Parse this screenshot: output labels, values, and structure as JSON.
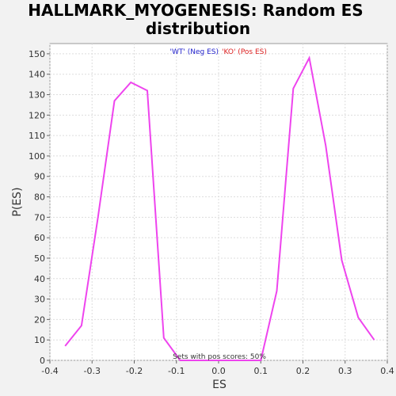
{
  "chart_data": {
    "type": "line",
    "title_lines": [
      "HALLMARK_MYOGENESIS: Random ES",
      "distribution"
    ],
    "xlabel": "ES",
    "ylabel": "P(ES)",
    "xlim": [
      -0.4,
      0.4
    ],
    "ylim": [
      0,
      155
    ],
    "xticks": [
      -0.4,
      -0.3,
      -0.2,
      -0.1,
      0.0,
      0.1,
      0.2,
      0.3,
      0.4
    ],
    "xtick_labels": [
      "-0.4",
      "-0.3",
      "-0.2",
      "-0.1",
      "0.0",
      "0.1",
      "0.2",
      "0.3",
      "0.4"
    ],
    "yticks": [
      0,
      10,
      20,
      30,
      40,
      50,
      60,
      70,
      80,
      90,
      100,
      110,
      120,
      130,
      140,
      150
    ],
    "ytick_labels": [
      "0",
      "10",
      "20",
      "30",
      "40",
      "50",
      "60",
      "70",
      "80",
      "90",
      "100",
      "110",
      "120",
      "130",
      "140",
      "150"
    ],
    "grid": true,
    "legend": [
      {
        "label": "'WT' (Neg ES)",
        "color": "#2222cc"
      },
      {
        "label": "'KO' (Pos ES)",
        "color": "#dd2222"
      }
    ],
    "annotation": "Sets with pos scores: 50%",
    "line_color": "#ee44ee",
    "series": [
      {
        "x": [
          -0.364,
          -0.325,
          -0.286,
          -0.247,
          -0.208,
          -0.169,
          -0.13,
          -0.091,
          0.1,
          0.138,
          0.177,
          0.215,
          0.254,
          0.292,
          0.331,
          0.369
        ],
        "y": [
          7,
          17,
          70,
          127,
          136,
          132,
          11,
          0,
          0,
          34,
          133,
          148,
          105,
          49,
          21,
          10
        ]
      }
    ]
  }
}
